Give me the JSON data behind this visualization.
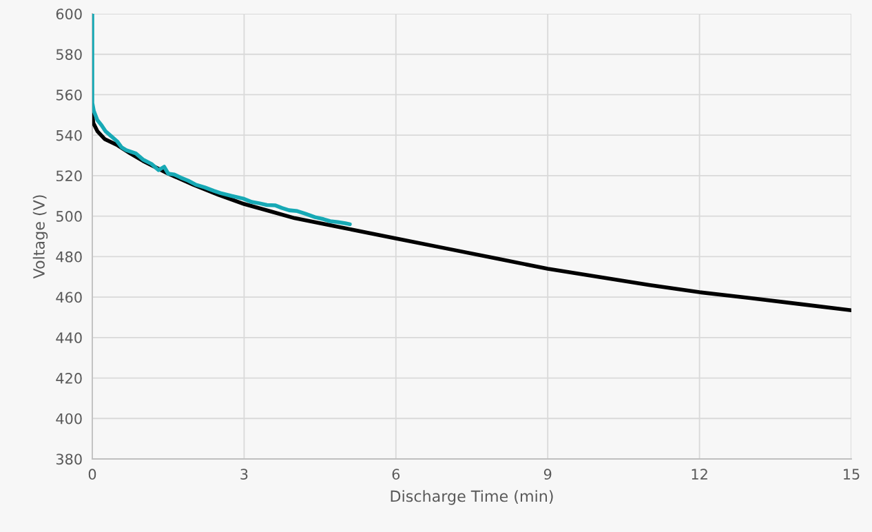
{
  "chart_data": {
    "type": "line",
    "xlabel": "Discharge Time (min)",
    "ylabel": "Voltage (V)",
    "xlim": [
      0,
      15
    ],
    "xticks": [
      0,
      3,
      6,
      9,
      12,
      15
    ],
    "ylim": [
      380,
      600
    ],
    "yticks": [
      380,
      400,
      420,
      440,
      460,
      480,
      500,
      520,
      540,
      560,
      580,
      600
    ],
    "grid": true,
    "marker": "none",
    "line_style": "solid",
    "series": [
      {
        "color": "#000000",
        "x": [
          0,
          0.02,
          0.1,
          0.25,
          0.5,
          0.75,
          1,
          1.5,
          2,
          2.5,
          3,
          3.5,
          4,
          5,
          6,
          7,
          8,
          9,
          10,
          11,
          12,
          13,
          14,
          15
        ],
        "values": [
          551,
          546,
          542,
          538,
          535,
          531,
          527.3,
          521,
          515.5,
          510.5,
          506,
          502.5,
          499,
          494,
          489,
          484,
          479,
          474,
          470,
          466,
          462.4,
          459.5,
          456.5,
          453.5
        ]
      },
      {
        "color": "#17a9b5",
        "x": [
          0,
          0,
          0.03,
          0.1,
          0.18,
          0.26,
          0.35,
          0.49,
          0.58,
          0.67,
          0.86,
          1.0,
          1.17,
          1.31,
          1.42,
          1.5,
          1.62,
          1.75,
          1.89,
          2.05,
          2.22,
          2.4,
          2.53,
          2.75,
          2.98,
          3.15,
          3.31,
          3.45,
          3.62,
          3.75,
          3.89,
          4.05,
          4.21,
          4.4,
          4.57,
          4.7,
          4.85,
          5.0,
          5.09
        ],
        "values": [
          600,
          556,
          552,
          547.5,
          545,
          542,
          540,
          537,
          534,
          532.6,
          531,
          528,
          525.8,
          522.7,
          524.4,
          521,
          520.6,
          519,
          517.6,
          515.5,
          514.2,
          512.5,
          511.4,
          510,
          508.7,
          507,
          506.3,
          505.5,
          505.3,
          504,
          502.9,
          502.5,
          501.2,
          499.5,
          498.5,
          497.5,
          497.1,
          496.5,
          496
        ]
      }
    ]
  }
}
